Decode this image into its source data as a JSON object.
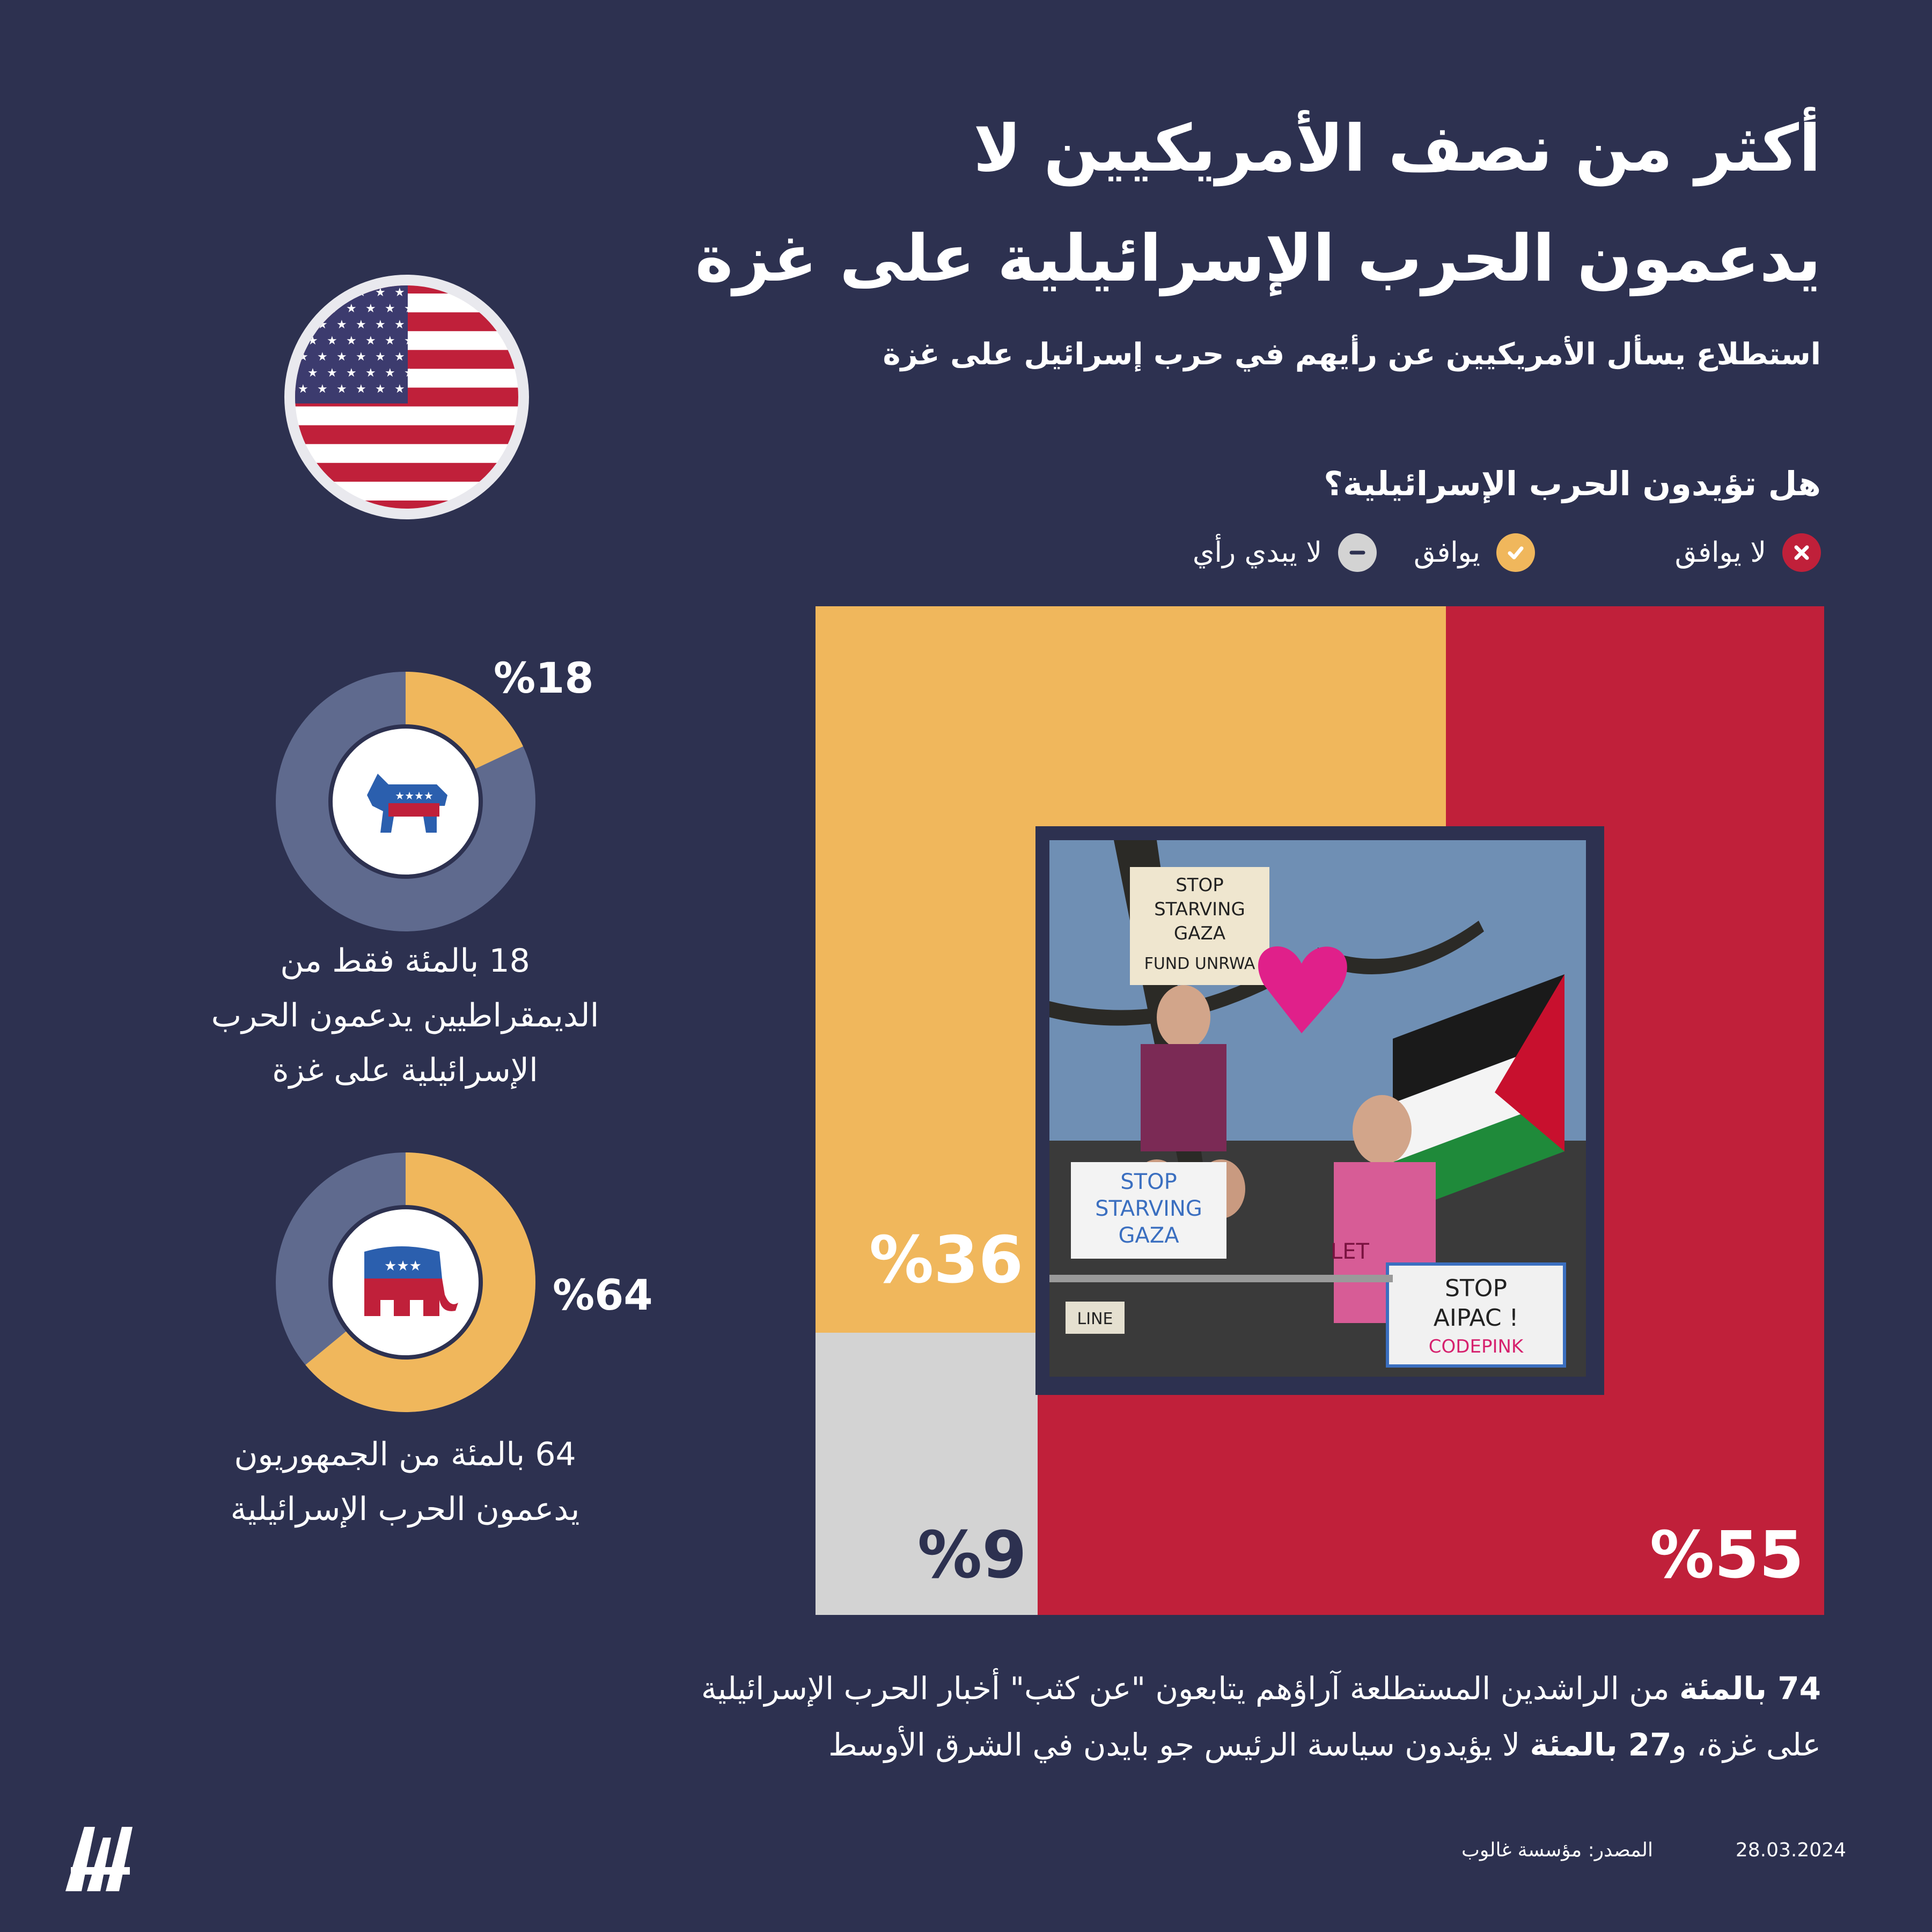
{
  "header": {
    "title_line1": "أكثر من نصف الأمريكيين لا",
    "title_line2": "يدعمون الحرب الإسرائيلية على غزة",
    "subtitle": "استطلاع يسأل الأمريكيين عن رأيهم في حرب إسرائيل على غزة"
  },
  "chart_data": [
    {
      "type": "bar",
      "title": "هل تؤيدون الحرب الإسرائيلية؟",
      "legend": [
        {
          "label": "لا يوافق",
          "color": "#c0203a",
          "icon": "x-icon"
        },
        {
          "label": "يوافق",
          "color": "#f0b75c",
          "icon": "check-icon"
        },
        {
          "label": "لا يبدي رأي",
          "color": "#d3d3d3",
          "icon": "minus-icon"
        }
      ],
      "categories": [
        "لا يوافق",
        "يوافق",
        "لا يبدي رأي"
      ],
      "values": [
        55,
        36,
        9
      ],
      "labels": [
        "%55",
        "%36",
        "%9"
      ]
    },
    {
      "type": "pie",
      "party": "democrats",
      "values": [
        18,
        82
      ],
      "highlight_label": "%18",
      "colors": [
        "#f0b75c",
        "#5f6a8e"
      ],
      "caption_lines": [
        "18 بالمئة فقط من",
        "الديمقراطيين يدعمون الحرب",
        "الإسرائيلية على غزة"
      ]
    },
    {
      "type": "pie",
      "party": "republicans",
      "values": [
        64,
        36
      ],
      "highlight_label": "%64",
      "colors": [
        "#f0b75c",
        "#5f6a8e"
      ],
      "caption_lines": [
        "64 بالمئة من الجمهوريون",
        "يدعمون الحرب الإسرائيلية"
      ]
    }
  ],
  "photo": {
    "signs": [
      "STOP",
      "STARVING",
      "GAZA",
      "FUND UNRWA",
      "STOP",
      "STARVING",
      "GAZA",
      "STOP",
      "AIPAC !",
      "CODEPINK",
      "LINE",
      "LET"
    ]
  },
  "footnote": {
    "line1_bold": "74 بالمئة",
    "line1_rest": " من الراشدين المستطلعة آراؤهم يتابعون \"عن كثب\" أخبار الحرب الإسرائيلية",
    "line2_pre": "على غزة، و",
    "line2_bold": "27 بالمئة",
    "line2_rest": " لا يؤيدون سياسة الرئيس جو بايدن في الشرق الأوسط"
  },
  "footer": {
    "source": "المصدر: مؤسسة غالوب",
    "date": "28.03.2024",
    "logo_text": "AA"
  },
  "colors": {
    "background": "#2d3150",
    "disagree": "#c0203a",
    "agree": "#f0b75c",
    "no_opinion": "#d3d3d3",
    "donut_rest": "#5f6a8e"
  }
}
